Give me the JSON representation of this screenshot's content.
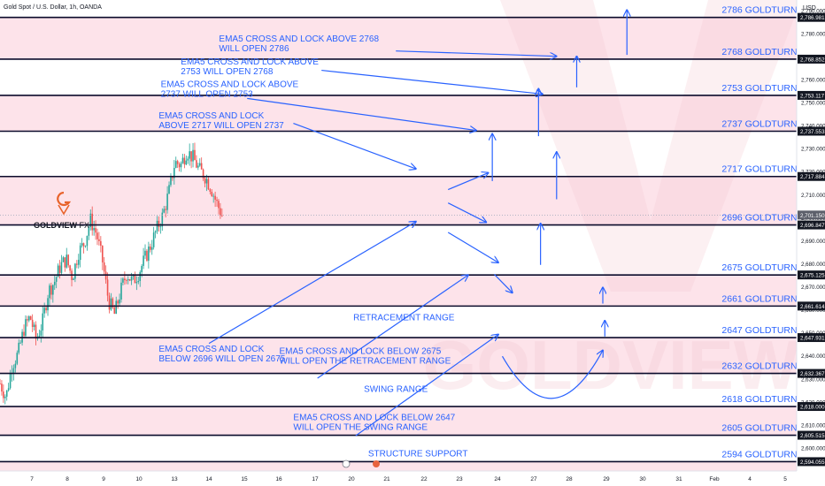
{
  "header": {
    "symbol_line": "Gold Spot / U.S. Dollar, 1h, OANDA",
    "currency": "USD"
  },
  "brand": {
    "name_left": "GOLDVIEW",
    "name_right": "FX",
    "watermark": "GOLDVIEW"
  },
  "colors": {
    "band_pink": "#fde3ea",
    "band_white": "#ffffff",
    "level_line": "#0b0b2b",
    "annotation_blue": "#2962ff",
    "up_candle": "#26a69a",
    "down_candle": "#ef5350",
    "price_tag_bg": "#131722",
    "watermark_pink": "#f6c9d2"
  },
  "chart_data": {
    "type": "candlestick",
    "symbol": "Gold Spot / U.S. Dollar",
    "timeframe": "1h",
    "broker": "OANDA",
    "ylim": [
      2590,
      2793
    ],
    "x_ticks": [
      "7",
      "8",
      "9",
      "10",
      "13",
      "14",
      "15",
      "16",
      "17",
      "20",
      "21",
      "22",
      "23",
      "24",
      "27",
      "28",
      "29",
      "30",
      "31",
      "Feb",
      "4",
      "5"
    ],
    "y_ticks": [
      "2,790.000",
      "2,780.000",
      "2,770.000",
      "2,760.000",
      "2,750.000",
      "2,740.000",
      "2,730.000",
      "2,720.000",
      "2,710.000",
      "2,700.000",
      "2,690.000",
      "2,680.000",
      "2,670.000",
      "2,660.000",
      "2,650.000",
      "2,640.000",
      "2,630.000",
      "2,620.000",
      "2,610.000",
      "2,600.000"
    ],
    "y_tick_values": [
      2790,
      2780,
      2770,
      2760,
      2750,
      2740,
      2730,
      2720,
      2710,
      2700,
      2690,
      2680,
      2670,
      2660,
      2650,
      2640,
      2630,
      2620,
      2610,
      2600
    ],
    "levels": [
      {
        "value": 2786.981,
        "price_label": "2,786.981",
        "label": "2786 GOLDTURN"
      },
      {
        "value": 2768.852,
        "price_label": "2,768.852",
        "label": "2768 GOLDTURN"
      },
      {
        "value": 2753.117,
        "price_label": "2,753.117",
        "label": "2753 GOLDTURN"
      },
      {
        "value": 2737.553,
        "price_label": "2,737.553",
        "label": "2737 GOLDTURN"
      },
      {
        "value": 2717.884,
        "price_label": "2,717.884",
        "label": "2717 GOLDTURN"
      },
      {
        "value": 2696.847,
        "price_label": "2,696.847",
        "label": "2696 GOLDTURN"
      },
      {
        "value": 2675.125,
        "price_label": "2,675.125",
        "label": "2675 GOLDTURN"
      },
      {
        "value": 2661.614,
        "price_label": "2,661.614",
        "label": "2661 GOLDTURN"
      },
      {
        "value": 2647.931,
        "price_label": "2,647.931",
        "label": "2647 GOLDTURN"
      },
      {
        "value": 2632.367,
        "price_label": "2,632.367",
        "label": "2632 GOLDTURN"
      },
      {
        "value": 2618.0,
        "price_label": "2,618.000",
        "label": "2618 GOLDTURN"
      },
      {
        "value": 2605.515,
        "price_label": "2,605.515",
        "label": "2605 GOLDTURN"
      },
      {
        "value": 2594.055,
        "price_label": "2,594.055",
        "label": "2594 GOLDTURN"
      }
    ],
    "current_price": {
      "value": 2701.15,
      "label": "2,701.150"
    },
    "price_path_x": [
      0,
      0.3,
      0.6,
      0.9,
      1.2,
      1.5,
      1.8,
      2.1,
      2.4,
      2.7,
      3.0,
      3.3,
      3.6,
      3.9,
      4.2,
      4.5,
      4.8,
      5.1,
      5.4,
      5.7,
      6.0,
      6.3,
      6.6,
      6.9,
      7.2,
      7.5,
      7.8,
      8.1,
      8.4,
      8.7,
      9.0,
      9.3,
      9.6,
      9.9,
      10.2,
      10.5,
      10.8,
      11.1
    ],
    "price_path_y": [
      2628,
      2622,
      2636,
      2641,
      2652,
      2657,
      2647,
      2654,
      2668,
      2672,
      2679,
      2682,
      2674,
      2685,
      2689,
      2699,
      2693,
      2681,
      2664,
      2658,
      2668,
      2676,
      2672,
      2676,
      2682,
      2688,
      2695,
      2701,
      2711,
      2724,
      2723,
      2729,
      2726,
      2721,
      2718,
      2713,
      2706,
      2700
    ],
    "annotations": [
      {
        "lines": [
          "EMA5 CROSS AND LOCK ABOVE",
          "2753 WILL OPEN 2768"
        ],
        "x": 9.0,
        "y": 2766.5
      },
      {
        "lines": [
          "EMA5 CROSS AND LOCK ABOVE 2768",
          "WILL OPEN 2786"
        ],
        "x": 10.9,
        "y": 2776.5
      },
      {
        "lines": [
          "EMA5 CROSS AND LOCK ABOVE",
          "2737 WILL OPEN 2753"
        ],
        "x": 8.0,
        "y": 2756.7
      },
      {
        "lines": [
          "EMA5 CROSS AND LOCK",
          "ABOVE 2717 WILL OPEN 2737"
        ],
        "x": 7.9,
        "y": 2743.2
      },
      {
        "lines": [
          "EMA5 CROSS AND LOCK",
          "BELOW 2696 WILL OPEN 2675"
        ],
        "x": 7.9,
        "y": 2641.9
      },
      {
        "lines": [
          "EMA5 CROSS AND LOCK BELOW 2675",
          "WILL OPEN THE RETRACEMENT RANGE"
        ],
        "x": 13.9,
        "y": 2640.9
      },
      {
        "lines": [
          "EMA5 CROSS AND LOCK BELOW 2647",
          "WILL OPEN THE SWING RANGE"
        ],
        "x": 14.6,
        "y": 2612.1
      }
    ],
    "zone_labels": [
      {
        "text": "RETRACEMENT RANGE",
        "x": 20.1,
        "y": 2655.5
      },
      {
        "text": "SWING RANGE",
        "x": 19.7,
        "y": 2624.3
      },
      {
        "text": "STRUCTURE SUPPORT",
        "x": 20.8,
        "y": 2596.3
      }
    ],
    "scenario_arrows": [
      {
        "from": [
          14.6,
          2741.0
        ],
        "to": [
          20.7,
          2721.2
        ]
      },
      {
        "from": [
          12.3,
          2751.8
        ],
        "to": [
          23.7,
          2737.9
        ]
      },
      {
        "from": [
          16.0,
          2764.0
        ],
        "to": [
          27.0,
          2753.7
        ]
      },
      {
        "from": [
          19.7,
          2772.4
        ],
        "to": [
          27.7,
          2770.1
        ]
      },
      {
        "from": [
          10.4,
          2645.4
        ],
        "to": [
          20.7,
          2698.3
        ]
      },
      {
        "from": [
          15.8,
          2630.3
        ],
        "to": [
          23.3,
          2675.1
        ]
      },
      {
        "from": [
          17.7,
          2605.3
        ],
        "to": [
          24.8,
          2649.3
        ]
      },
      {
        "from": [
          22.3,
          2712.2
        ],
        "to": [
          24.3,
          2719.5
        ]
      },
      {
        "from": [
          22.3,
          2706.4
        ],
        "to": [
          24.2,
          2698.0
        ]
      },
      {
        "from": [
          22.3,
          2693.6
        ],
        "to": [
          24.8,
          2680.5
        ]
      },
      {
        "from": [
          24.6,
          2675.4
        ],
        "to": [
          25.5,
          2667.4
        ]
      },
      {
        "from": [
          26.9,
          2679.5
        ],
        "to": [
          26.9,
          2697.5
        ]
      },
      {
        "from": [
          27.7,
          2708.0
        ],
        "to": [
          27.7,
          2728.5
        ]
      },
      {
        "from": [
          24.5,
          2715.9
        ],
        "to": [
          24.5,
          2736.4
        ]
      },
      {
        "from": [
          26.8,
          2735.4
        ],
        "to": [
          26.8,
          2756.0
        ]
      },
      {
        "from": [
          28.7,
          2756.6
        ],
        "to": [
          28.7,
          2770.1
        ]
      },
      {
        "from": [
          31.2,
          2770.7
        ],
        "to": [
          31.2,
          2790.2
        ]
      },
      {
        "from": [
          30.0,
          2662.7
        ],
        "to": [
          30.0,
          2669.7
        ]
      },
      {
        "from": [
          30.1,
          2648.4
        ],
        "to": [
          30.1,
          2655.3
        ]
      }
    ],
    "swing_curve": {
      "start": [
        25.0,
        2639.8
      ],
      "control": [
        27.5,
        2602.0
      ],
      "end": [
        30.0,
        2642.4
      ]
    }
  }
}
